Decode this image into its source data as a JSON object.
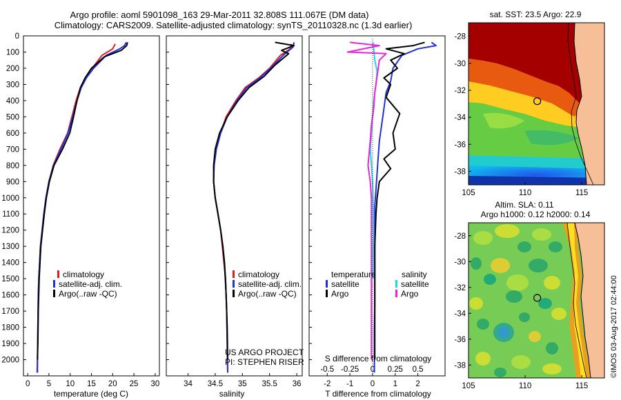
{
  "header": {
    "title_line1": "Argo profile: aoml 5901098_163 29-Mar-2011 32.808S 111.067E (DM data)",
    "title_line2": "Climatology: CARS2009. Satellite-adjusted climatology: synTS_20110328.nc (1.3d earlier)"
  },
  "colors": {
    "climatology": "#e41a1c",
    "satellite": "#1f2fdc",
    "argo": "#000000",
    "s_satellite": "#22d3e8",
    "s_argo": "#ee22dd",
    "land": "#f7bf98"
  },
  "chart_data": [
    {
      "type": "line",
      "id": "temperature",
      "xlabel": "temperature (deg C)",
      "ylabel": "",
      "xlim": [
        -1,
        31
      ],
      "ylim": [
        2100,
        0
      ],
      "xticks": [
        0,
        5,
        10,
        15,
        20,
        25,
        30
      ],
      "yticks": [
        0,
        100,
        200,
        300,
        400,
        500,
        600,
        700,
        800,
        900,
        1000,
        1100,
        1200,
        1300,
        1400,
        1500,
        1600,
        1700,
        1800,
        1900,
        2000
      ],
      "legend": [
        "climatology",
        "satellite-adj. clim.",
        "Argo(..raw -QC)"
      ],
      "legend_placement": "lower-center",
      "series": [
        {
          "name": "climatology",
          "color": "#e41a1c",
          "x": [
            20.6,
            20.0,
            17.5,
            15.2,
            13.6,
            12.4,
            11.4,
            10.4,
            9.4,
            7.6,
            6.0,
            5.0,
            4.3,
            3.8,
            3.4,
            3.0,
            2.8,
            2.6,
            2.5,
            2.4,
            2.3,
            2.2
          ],
          "y": [
            50,
            80,
            120,
            200,
            260,
            320,
            400,
            500,
            600,
            700,
            800,
            900,
            1000,
            1100,
            1200,
            1300,
            1400,
            1500,
            1600,
            1800,
            2000,
            2080
          ]
        },
        {
          "name": "satellite-adj. clim.",
          "color": "#1f2fdc",
          "x": [
            23.2,
            22.8,
            21.7,
            18.5,
            15.5,
            13.8,
            12.6,
            11.6,
            10.6,
            9.5,
            7.8,
            6.1,
            5.0,
            4.3,
            3.8,
            3.4,
            3.0,
            2.8,
            2.6,
            2.5,
            2.4,
            2.3,
            2.3
          ],
          "y": [
            40,
            60,
            80,
            120,
            200,
            260,
            320,
            400,
            500,
            600,
            700,
            800,
            900,
            1000,
            1100,
            1200,
            1300,
            1400,
            1500,
            1600,
            1800,
            2000,
            2080
          ]
        },
        {
          "name": "Argo(..raw -QC)",
          "color": "#000000",
          "x": [
            23.5,
            23.3,
            22.0,
            18.0,
            15.0,
            13.5,
            12.4,
            11.6,
            10.8,
            9.9,
            8.2,
            6.2,
            5.1,
            4.4,
            3.9,
            3.5,
            3.1,
            2.9,
            2.7,
            2.5,
            2.4,
            2.3
          ],
          "y": [
            40,
            60,
            90,
            130,
            200,
            260,
            320,
            400,
            500,
            600,
            700,
            800,
            900,
            1000,
            1100,
            1200,
            1300,
            1400,
            1500,
            1700,
            1900,
            2000
          ]
        }
      ]
    },
    {
      "type": "line",
      "id": "salinity",
      "xlabel": "salinity",
      "ylabel": "",
      "xlim": [
        33.6,
        36.1
      ],
      "ylim": [
        2100,
        0
      ],
      "xticks": [
        34,
        34.5,
        35,
        35.5,
        36
      ],
      "legend": [
        "climatology",
        "satellite-adj. clim.",
        "Argo(..raw -QC)"
      ],
      "legend_placement": "lower-center",
      "annotations": [
        "US ARGO PROJECT",
        "PI: STEPHEN RISER"
      ],
      "series": [
        {
          "name": "climatology",
          "color": "#e41a1c",
          "x": [
            35.9,
            35.88,
            35.7,
            35.5,
            35.3,
            35.05,
            34.88,
            34.7,
            34.6,
            34.52,
            34.48,
            34.47,
            34.5,
            34.55,
            34.6,
            34.63,
            34.66,
            34.69,
            34.71,
            34.72,
            34.73
          ],
          "y": [
            50,
            80,
            120,
            200,
            260,
            320,
            400,
            500,
            600,
            700,
            800,
            900,
            1000,
            1100,
            1200,
            1300,
            1400,
            1500,
            1700,
            1900,
            2080
          ]
        },
        {
          "name": "satellite-adj. clim.",
          "color": "#1f2fdc",
          "x": [
            35.95,
            35.93,
            35.75,
            35.52,
            35.32,
            35.08,
            34.9,
            34.72,
            34.6,
            34.52,
            34.48,
            34.47,
            34.5,
            34.55,
            34.6,
            34.64,
            34.67,
            34.69,
            34.71,
            34.72,
            34.73
          ],
          "y": [
            40,
            70,
            120,
            200,
            260,
            320,
            400,
            500,
            600,
            700,
            800,
            900,
            1000,
            1100,
            1200,
            1300,
            1400,
            1500,
            1700,
            1900,
            2080
          ]
        },
        {
          "name": "Argo(..raw -QC)",
          "color": "#000000",
          "x": [
            35.6,
            35.95,
            35.72,
            35.85,
            35.6,
            35.4,
            35.12,
            34.92,
            34.72,
            34.58,
            34.5,
            34.47,
            34.47,
            34.5,
            34.55,
            34.6,
            34.64,
            34.67,
            34.7,
            34.72,
            34.73
          ],
          "y": [
            40,
            60,
            90,
            110,
            180,
            250,
            320,
            400,
            500,
            600,
            700,
            800,
            900,
            1000,
            1100,
            1200,
            1300,
            1400,
            1600,
            1800,
            2000
          ]
        }
      ]
    },
    {
      "type": "line",
      "id": "difference",
      "xlabel": "T difference from climatology",
      "xlabel_top": "S difference from climatology",
      "ylabel": "",
      "xlim": [
        -2.8,
        3.2
      ],
      "ylim": [
        2100,
        0
      ],
      "xticks": [
        -2,
        -1,
        0,
        1,
        2
      ],
      "s_xticks": [
        "-0.5",
        "-0.25",
        "0",
        "0.25",
        "0.5"
      ],
      "legend_temperature": {
        "heading": "temperature",
        "items": [
          "satellite",
          "Argo"
        ]
      },
      "legend_salinity": {
        "heading": "salinity",
        "items": [
          "satellite",
          "Argo"
        ]
      },
      "series": [
        {
          "name": "temperature satellite",
          "color": "#1f2fdc",
          "x": [
            2.6,
            2.8,
            2.0,
            1.3,
            0.9,
            0.8,
            0.6,
            0.5,
            0.4,
            0.3,
            0.25,
            0.2,
            0.15,
            0.1,
            0.1,
            0.1,
            0.1,
            0.1,
            0.08,
            0.08,
            0.08
          ],
          "y": [
            40,
            60,
            80,
            120,
            200,
            280,
            350,
            450,
            550,
            650,
            750,
            850,
            950,
            1050,
            1200,
            1350,
            1500,
            1650,
            1800,
            1950,
            2080
          ]
        },
        {
          "name": "temperature Argo",
          "color": "#000000",
          "x": [
            2.3,
            1.8,
            0.6,
            1.4,
            0.8,
            1.1,
            0.5,
            0.8,
            0.6,
            1.2,
            0.9,
            1.0,
            0.5,
            0.8,
            0.3,
            0.2,
            0.15,
            0.1,
            0.1,
            0.1,
            0.1
          ],
          "y": [
            40,
            60,
            80,
            110,
            150,
            200,
            260,
            300,
            380,
            480,
            600,
            700,
            760,
            820,
            900,
            1000,
            1100,
            1300,
            1500,
            1800,
            2000
          ]
        },
        {
          "name": "salinity satellite",
          "color": "#22d3e8",
          "x": [
            0.02,
            0.05,
            0.1,
            0.2,
            0.15,
            0.05,
            0.0,
            -0.05,
            -0.1,
            -0.05,
            0.0,
            0.02,
            0.03,
            0.03,
            0.02
          ],
          "y": [
            40,
            80,
            150,
            220,
            300,
            400,
            500,
            600,
            700,
            800,
            900,
            1000,
            1100,
            1300,
            1500
          ]
        },
        {
          "name": "salinity Argo",
          "color": "#ee22dd",
          "x": [
            -1.0,
            0.3,
            -1.1,
            0.6,
            0.3,
            0.2,
            0.1,
            0.05,
            -0.05,
            -0.1,
            -0.2,
            -0.1,
            -0.05,
            -0.05,
            -0.05,
            -0.05
          ],
          "y": [
            40,
            60,
            100,
            110,
            150,
            250,
            350,
            450,
            550,
            650,
            800,
            900,
            1000,
            1300,
            1700,
            2000
          ]
        }
      ]
    },
    {
      "type": "heatmap",
      "id": "sst_map",
      "title": "sat. SST: 23.5 Argo: 22.9",
      "xlim": [
        105,
        117
      ],
      "ylim": [
        -39,
        -27
      ],
      "xticks": [
        105,
        110,
        115
      ],
      "yticks": [
        -28,
        -30,
        -32,
        -34,
        -36,
        -38
      ],
      "marker": {
        "lon": 111.067,
        "lat": -32.808
      }
    },
    {
      "type": "heatmap",
      "id": "sla_map",
      "title_line1": "Altim. SLA: 0.11",
      "title_line2": "Argo h1000: 0.12 h2000: 0.14",
      "xlim": [
        105,
        117
      ],
      "ylim": [
        -39,
        -27
      ],
      "xticks": [
        105,
        110,
        115
      ],
      "yticks": [
        -28,
        -30,
        -32,
        -34,
        -36,
        -38
      ],
      "marker": {
        "lon": 111.067,
        "lat": -32.808
      }
    }
  ],
  "credit": "©IMOS 03-Aug-2017 02:44:00"
}
